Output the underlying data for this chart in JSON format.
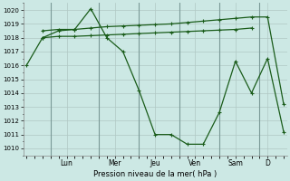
{
  "background_color": "#cce8e4",
  "grid_color": "#b0c8c4",
  "vline_color": "#7a9a97",
  "line_color": "#1a5c1a",
  "title": "Pression niveau de la mer( hPa )",
  "ylim": [
    1009.5,
    1020.5
  ],
  "yticks": [
    1010,
    1011,
    1012,
    1013,
    1014,
    1015,
    1016,
    1017,
    1018,
    1019,
    1020
  ],
  "day_labels": [
    "Lun",
    "Mer",
    "Jeu",
    "Ven",
    "Sam",
    "D"
  ],
  "day_tick_positions": [
    2.5,
    5.5,
    8.0,
    10.5,
    13.0,
    15.0
  ],
  "day_vline_positions": [
    1.5,
    4.5,
    7.0,
    9.5,
    12.0,
    14.5
  ],
  "xlim": [
    -0.2,
    16.2
  ],
  "line1_x": [
    0,
    1,
    2,
    3,
    4,
    5,
    6,
    7,
    8,
    9,
    10,
    11,
    12,
    13,
    14,
    15,
    16
  ],
  "line1_y": [
    1016.0,
    1018.0,
    1018.5,
    1018.6,
    1020.1,
    1018.0,
    1017.0,
    1014.2,
    1011.0,
    1011.0,
    1010.3,
    1010.3,
    1012.6,
    1016.3,
    1014.0,
    1016.5,
    1011.2
  ],
  "line2_x": [
    1,
    2,
    3,
    4,
    5,
    6,
    7,
    8,
    9,
    10,
    11,
    12,
    13,
    14,
    15,
    16
  ],
  "line2_y": [
    1018.5,
    1018.6,
    1018.6,
    1018.7,
    1018.8,
    1018.85,
    1018.9,
    1018.95,
    1019.0,
    1019.1,
    1019.2,
    1019.3,
    1019.4,
    1019.5,
    1019.5,
    1013.2
  ],
  "line3_x": [
    1,
    2,
    3,
    4,
    5,
    6,
    7,
    8,
    9,
    10,
    11,
    12,
    13,
    14
  ],
  "line3_y": [
    1018.0,
    1018.1,
    1018.1,
    1018.15,
    1018.2,
    1018.25,
    1018.3,
    1018.35,
    1018.4,
    1018.45,
    1018.5,
    1018.55,
    1018.6,
    1018.7
  ]
}
